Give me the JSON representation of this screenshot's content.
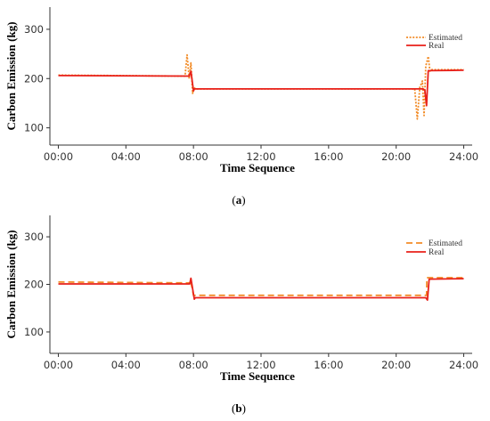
{
  "chart_data": [
    {
      "type": "line",
      "panel_label": "a",
      "xlabel": "Time Sequence",
      "ylabel": "Carbon Emission (kg)",
      "xlim": [
        -0.5,
        24.5
      ],
      "ylim": [
        65,
        345
      ],
      "xticks": [
        0,
        4,
        8,
        12,
        16,
        20,
        24
      ],
      "xtick_labels": [
        "00:00",
        "04:00",
        "08:00",
        "12:00",
        "16:00",
        "20:00",
        "24:00"
      ],
      "yticks": [
        100,
        200,
        300
      ],
      "ytick_labels": [
        "100",
        "200",
        "300"
      ],
      "grid": false,
      "legend_position": "top-right",
      "series": [
        {
          "name": "Estimated",
          "color": "#F28C28",
          "style": "dotted",
          "x": [
            0,
            7.5,
            7.62,
            7.75,
            7.85,
            7.95,
            8.05,
            8.1,
            21.1,
            21.25,
            21.4,
            21.55,
            21.65,
            21.75,
            21.9,
            22.0,
            22.1,
            24
          ],
          "y": [
            207,
            205,
            248,
            200,
            232,
            170,
            182,
            179,
            179,
            118,
            182,
            195,
            125,
            225,
            245,
            215,
            218,
            218
          ]
        },
        {
          "name": "Real",
          "color": "#E8201A",
          "style": "solid",
          "x": [
            0,
            7.75,
            7.85,
            8.0,
            8.05,
            21.6,
            21.7,
            21.8,
            21.9,
            24
          ],
          "y": [
            206,
            205,
            215,
            175,
            179,
            179,
            176,
            145,
            216,
            217
          ]
        }
      ]
    },
    {
      "type": "line",
      "panel_label": "b",
      "xlabel": "Time Sequence",
      "ylabel": "Carbon Emission (kg)",
      "xlim": [
        -0.5,
        24.5
      ],
      "ylim": [
        55,
        345
      ],
      "xticks": [
        0,
        4,
        8,
        12,
        16,
        20,
        24
      ],
      "xtick_labels": [
        "00:00",
        "04:00",
        "08:00",
        "12:00",
        "16:00",
        "20:00",
        "24:00"
      ],
      "yticks": [
        100,
        200,
        300
      ],
      "ytick_labels": [
        "100",
        "200",
        "300"
      ],
      "grid": false,
      "legend_position": "top-right",
      "series": [
        {
          "name": "Estimated",
          "color": "#F28C28",
          "style": "dashed",
          "x": [
            0,
            7.8,
            7.82,
            8.0,
            21.8,
            21.82,
            24
          ],
          "y": [
            205,
            203,
            210,
            177,
            177,
            214,
            214
          ]
        },
        {
          "name": "Real",
          "color": "#E8201A",
          "style": "solid",
          "x": [
            0,
            7.78,
            7.85,
            8.05,
            8.1,
            21.75,
            21.85,
            21.95,
            24
          ],
          "y": [
            201,
            201,
            213,
            169,
            172,
            172,
            167,
            211,
            212
          ]
        }
      ]
    }
  ]
}
